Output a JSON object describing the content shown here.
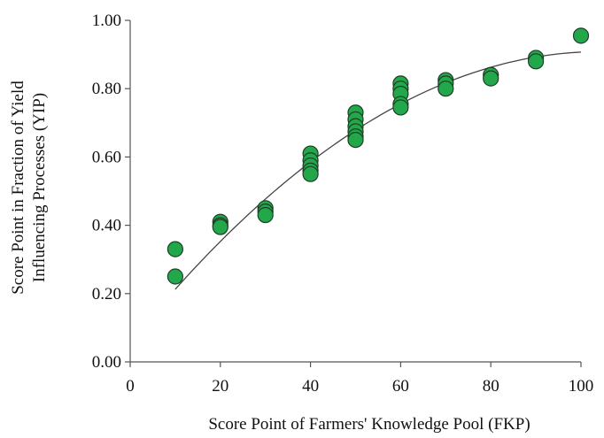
{
  "chart_data": {
    "type": "scatter",
    "title": "",
    "xlabel": "Score Point of Farmers' Knowledge Pool (FKP)",
    "ylabel_lines": [
      "Score Point in Fraction of Yield",
      "Influencing Processes (YIP)"
    ],
    "xlim": [
      0,
      100
    ],
    "ylim": [
      0,
      1.0
    ],
    "x_ticks": [
      {
        "value": 0,
        "label": "0"
      },
      {
        "value": 20,
        "label": "20"
      },
      {
        "value": 40,
        "label": "40"
      },
      {
        "value": 60,
        "label": "60"
      },
      {
        "value": 80,
        "label": "80"
      },
      {
        "value": 100,
        "label": "100"
      }
    ],
    "y_ticks": [
      {
        "value": 0.0,
        "label": "0.00"
      },
      {
        "value": 0.2,
        "label": "0.20"
      },
      {
        "value": 0.4,
        "label": "0.40"
      },
      {
        "value": 0.6,
        "label": "0.60"
      },
      {
        "value": 0.8,
        "label": "0.80"
      },
      {
        "value": 1.0,
        "label": "1.00"
      }
    ],
    "grid": false,
    "legend": "none",
    "colors": {
      "marker_fill": "#22a84a",
      "marker_stroke": "#1f3d27",
      "trend_line": "#444444",
      "axis": "#555555"
    },
    "points": [
      {
        "x": 10,
        "y": 0.33
      },
      {
        "x": 10,
        "y": 0.25
      },
      {
        "x": 20,
        "y": 0.41
      },
      {
        "x": 20,
        "y": 0.4
      },
      {
        "x": 20,
        "y": 0.395
      },
      {
        "x": 30,
        "y": 0.45
      },
      {
        "x": 30,
        "y": 0.44
      },
      {
        "x": 30,
        "y": 0.43
      },
      {
        "x": 40,
        "y": 0.61
      },
      {
        "x": 40,
        "y": 0.59
      },
      {
        "x": 40,
        "y": 0.575
      },
      {
        "x": 40,
        "y": 0.56
      },
      {
        "x": 40,
        "y": 0.55
      },
      {
        "x": 50,
        "y": 0.73
      },
      {
        "x": 50,
        "y": 0.71
      },
      {
        "x": 50,
        "y": 0.69
      },
      {
        "x": 50,
        "y": 0.675
      },
      {
        "x": 50,
        "y": 0.66
      },
      {
        "x": 50,
        "y": 0.65
      },
      {
        "x": 60,
        "y": 0.815
      },
      {
        "x": 60,
        "y": 0.8
      },
      {
        "x": 60,
        "y": 0.785
      },
      {
        "x": 60,
        "y": 0.755
      },
      {
        "x": 60,
        "y": 0.745
      },
      {
        "x": 70,
        "y": 0.825
      },
      {
        "x": 70,
        "y": 0.815
      },
      {
        "x": 70,
        "y": 0.8
      },
      {
        "x": 80,
        "y": 0.84
      },
      {
        "x": 80,
        "y": 0.83
      },
      {
        "x": 90,
        "y": 0.89
      },
      {
        "x": 90,
        "y": 0.88
      },
      {
        "x": 100,
        "y": 0.955
      }
    ],
    "trend_line": {
      "type": "polynomial",
      "x_range": [
        10,
        100
      ],
      "coefficients": [
        0.057,
        0.01635,
        -7.85e-05
      ]
    }
  }
}
